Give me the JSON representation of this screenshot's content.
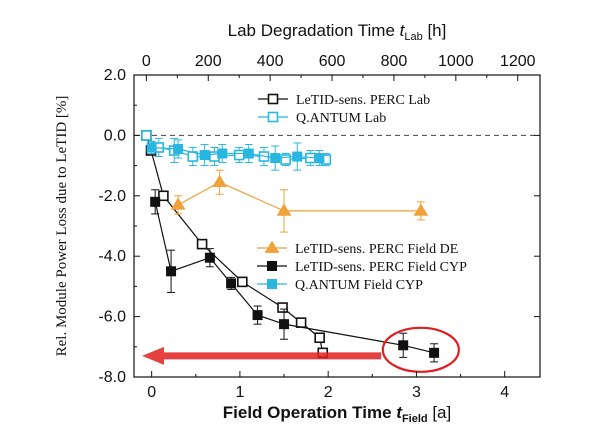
{
  "chart_data": {
    "type": "scatter",
    "x_axis": {
      "label_main": "Field Operation Time ",
      "label_var": "t",
      "label_sub": "Field",
      "label_unit": " [a]",
      "range": [
        -0.2,
        4.4
      ],
      "ticks": [
        0,
        1,
        2,
        3,
        4
      ],
      "tick_labels": [
        "0",
        "1",
        "2",
        "3",
        "4"
      ]
    },
    "x2_axis": {
      "label_main": "Lab Degradation Time ",
      "label_var": "t",
      "label_sub": "Lab",
      "label_unit": " [h]",
      "range": [
        -40,
        1272
      ],
      "ticks": [
        0,
        200,
        400,
        600,
        800,
        1000,
        1200
      ],
      "tick_labels": [
        "0",
        "200",
        "400",
        "600",
        "800",
        "1000",
        "1200"
      ]
    },
    "y_axis": {
      "label": "Rel. Module Power Loss due to LeTID [%]",
      "range": [
        -8.0,
        2.0
      ],
      "ticks": [
        2.0,
        0.0,
        -2.0,
        -4.0,
        -6.0,
        -8.0
      ],
      "tick_labels": [
        "2.0",
        "0.0",
        "-2.0",
        "-4.0",
        "-6.0",
        "-8.0"
      ]
    },
    "reference_line_y": 0,
    "legend_top": [
      {
        "label": "LeTID-sens. PERC Lab",
        "color": "#111111",
        "marker": "square-open"
      },
      {
        "label": "Q.ANTUM Lab",
        "color": "#29b6e0",
        "marker": "square-open"
      }
    ],
    "legend_bottom": [
      {
        "label": "LeTID-sens. PERC Field DE",
        "color": "#f0a13a",
        "marker": "triangle-filled"
      },
      {
        "label": "LeTID-sens. PERC Field CYP",
        "color": "#111111",
        "marker": "square-filled"
      },
      {
        "label": "Q.ANTUM Field CYP",
        "color": "#29b6e0",
        "marker": "square-filled"
      }
    ],
    "series": [
      {
        "name": "LeTID-sens. PERC Lab",
        "axis": "lab",
        "color": "#111111",
        "marker": "square-open",
        "x": [
          0,
          15,
          55,
          180,
          310,
          440,
          500,
          560,
          570
        ],
        "y": [
          0.0,
          -0.5,
          -2.0,
          -3.6,
          -4.85,
          -5.7,
          -6.2,
          -6.7,
          -7.2
        ],
        "err": [
          0,
          0,
          0,
          0,
          0,
          0,
          0,
          0,
          0
        ]
      },
      {
        "name": "Q.ANTUM Lab",
        "axis": "lab",
        "color": "#29b6e0",
        "marker": "square-open",
        "x": [
          0,
          40,
          90,
          150,
          220,
          300,
          380,
          450,
          530,
          580
        ],
        "y": [
          0.0,
          -0.4,
          -0.5,
          -0.7,
          -0.7,
          -0.65,
          -0.7,
          -0.8,
          -0.75,
          -0.8
        ],
        "err": [
          0.15,
          0.3,
          0.4,
          0.3,
          0.3,
          0.25,
          0.3,
          0.2,
          0.25,
          0.2
        ]
      },
      {
        "name": "LeTID-sens. PERC Field DE",
        "axis": "field",
        "color": "#f0a13a",
        "marker": "triangle-filled",
        "x": [
          0.3,
          0.77,
          1.5,
          3.05
        ],
        "y": [
          -2.3,
          -1.55,
          -2.5,
          -2.5
        ],
        "err": [
          0.3,
          0.4,
          0.7,
          0.3
        ]
      },
      {
        "name": "LeTID-sens. PERC Field CYP",
        "axis": "field",
        "color": "#111111",
        "marker": "square-filled",
        "x": [
          0.04,
          0.22,
          0.66,
          0.9,
          1.2,
          1.5,
          2.85,
          3.2
        ],
        "y": [
          -2.2,
          -4.5,
          -4.05,
          -4.9,
          -5.95,
          -6.25,
          -6.95,
          -7.2
        ],
        "err": [
          0.4,
          0.7,
          0.3,
          0.2,
          0.3,
          0.5,
          0.4,
          0.3
        ]
      },
      {
        "name": "Q.ANTUM Field CYP",
        "axis": "field",
        "color": "#29b6e0",
        "marker": "square-filled",
        "x": [
          0.0,
          0.3,
          0.6,
          0.8,
          1.1,
          1.4,
          1.65,
          1.9
        ],
        "y": [
          -0.4,
          -0.45,
          -0.65,
          -0.6,
          -0.6,
          -0.75,
          -0.7,
          -0.75
        ],
        "err": [
          0.2,
          0.3,
          0.35,
          0.3,
          0.3,
          0.4,
          0.45,
          0.25
        ]
      }
    ],
    "annotations": {
      "circle": {
        "x": 3.05,
        "y": -7.1,
        "color": "#e02020"
      },
      "arrow": {
        "from_x": 2.6,
        "to_x": -0.2,
        "y": -7.3,
        "color": "#e02020"
      }
    }
  }
}
